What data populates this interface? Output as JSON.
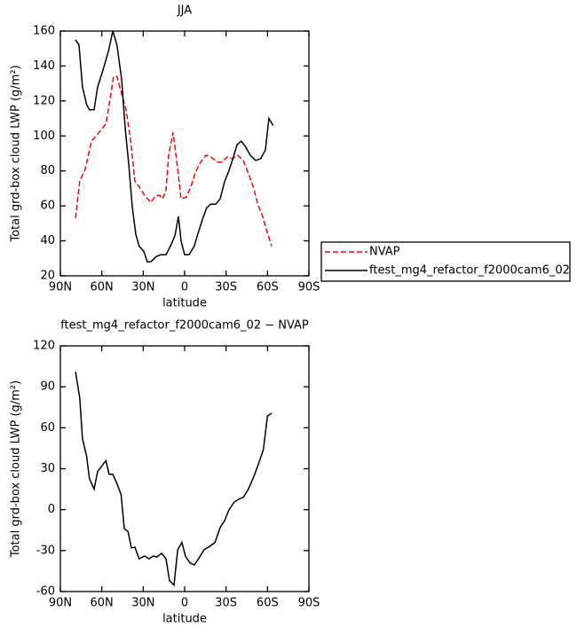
{
  "chart_data": [
    {
      "type": "line",
      "title": "JJA",
      "xlabel": "latitude",
      "ylabel": "Total grd-box cloud LWP (g/m²)",
      "xlim": [
        90,
        -90
      ],
      "xticks": [
        {
          "value": 90,
          "label": "90N"
        },
        {
          "value": 60,
          "label": "60N"
        },
        {
          "value": 30,
          "label": "30N"
        },
        0,
        {
          "value": -30,
          "label": "30S"
        },
        {
          "value": -60,
          "label": "60S"
        },
        {
          "value": -90,
          "label": "90S"
        }
      ],
      "ylim": [
        20,
        160
      ],
      "yticks": [
        20,
        40,
        60,
        80,
        100,
        120,
        140,
        160
      ],
      "legend": "right",
      "series": [
        {
          "name": "NVAP",
          "color": "#ff0000",
          "linestyle": "dashed",
          "x": [
            79,
            76,
            72,
            67.5,
            64,
            61,
            57,
            54,
            51.5,
            49,
            45.6,
            42.4,
            39,
            36,
            33,
            29,
            24.5,
            20.6,
            18,
            16,
            13.5,
            11.6,
            8.4,
            5.8,
            2.6,
            -1.3,
            -4.5,
            -7.7,
            -11.5,
            -15.4,
            -19,
            -23.8,
            -27,
            -30.8,
            -34.7,
            -38.5,
            -42.4,
            -46,
            -50,
            -53,
            -56.5,
            -59,
            -63
          ],
          "values": [
            53,
            74,
            81,
            97,
            100,
            103,
            107,
            121,
            134,
            134,
            124,
            115,
            97,
            74,
            71,
            66,
            62,
            66,
            66,
            64,
            69,
            89,
            102,
            86,
            64,
            65,
            71,
            79,
            85,
            89,
            88,
            85,
            85,
            88,
            87,
            89,
            86,
            79,
            70,
            61,
            54,
            47,
            37
          ]
        },
        {
          "name": "ftest_mg4_refactor_f2000cam6_02",
          "color": "#000000",
          "linestyle": "solid",
          "x": [
            79,
            76.5,
            74,
            71,
            69,
            65.6,
            63,
            59,
            55,
            52,
            49,
            45.6,
            43,
            40.5,
            38,
            35.4,
            33,
            29.6,
            27,
            24.4,
            20.6,
            17.4,
            13.5,
            9.7,
            7,
            4.5,
            2.6,
            0,
            -3.2,
            -7,
            -9.6,
            -12.8,
            -16,
            -19,
            -22.5,
            -25.7,
            -29,
            -32,
            -35,
            -38,
            -41,
            -44,
            -47.5,
            -51.4,
            -55,
            -58.5,
            -61,
            -64
          ],
          "values": [
            155,
            152,
            128,
            118,
            115,
            115,
            128,
            138,
            149,
            160,
            152,
            132,
            104,
            84,
            60,
            44,
            37,
            34,
            28,
            28,
            31,
            32,
            32,
            38,
            43,
            54,
            40,
            32,
            32,
            37,
            44,
            52,
            59,
            61,
            61,
            64,
            74,
            80,
            87,
            95,
            97,
            94,
            89,
            86,
            87,
            92,
            110,
            106
          ]
        }
      ]
    },
    {
      "type": "line",
      "title": "ftest_mg4_refactor_f2000cam6_02 − NVAP",
      "xlabel": "latitude",
      "ylabel": "Total grd-box cloud LWP (g/m²)",
      "xlim": [
        90,
        -90
      ],
      "xticks": [
        {
          "value": 90,
          "label": "90N"
        },
        {
          "value": 60,
          "label": "60N"
        },
        {
          "value": 30,
          "label": "30N"
        },
        0,
        {
          "value": -30,
          "label": "30S"
        },
        {
          "value": -60,
          "label": "60S"
        },
        {
          "value": -90,
          "label": "90S"
        }
      ],
      "ylim": [
        -60,
        120
      ],
      "yticks": [
        -60,
        -30,
        0,
        30,
        60,
        90,
        120
      ],
      "series": [
        {
          "color": "#000000",
          "linestyle": "solid",
          "x": [
            79,
            76,
            74,
            71,
            69,
            65.6,
            63,
            60,
            57,
            54.7,
            52,
            49,
            46,
            43.7,
            41,
            38.6,
            36,
            33,
            29,
            25.7,
            23,
            20,
            16.7,
            13.5,
            11,
            7.7,
            5,
            2,
            -0.6,
            -3.8,
            -7,
            -10,
            -14,
            -18,
            -22,
            -25.7,
            -29,
            -32,
            -36,
            -39,
            -42.4,
            -46,
            -50,
            -54,
            -57,
            -60,
            -63
          ],
          "values": [
            101,
            82,
            52,
            39,
            23,
            15,
            28,
            32,
            36,
            26,
            26,
            19,
            11,
            -14,
            -16,
            -28,
            -27.5,
            -36,
            -34,
            -36,
            -34,
            -34.6,
            -32,
            -36,
            -52,
            -55.4,
            -29.4,
            -24,
            -34,
            -39,
            -40.5,
            -36,
            -29.4,
            -27,
            -24,
            -13,
            -8,
            -0.2,
            5.6,
            7.6,
            9,
            14.7,
            24,
            35,
            44,
            68.6,
            70.6
          ]
        }
      ]
    }
  ]
}
